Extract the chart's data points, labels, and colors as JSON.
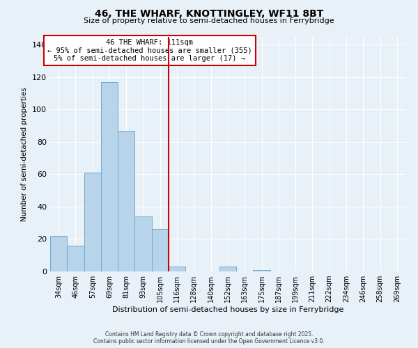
{
  "title": "46, THE WHARF, KNOTTINGLEY, WF11 8BT",
  "subtitle": "Size of property relative to semi-detached houses in Ferrybridge",
  "xlabel": "Distribution of semi-detached houses by size in Ferrybridge",
  "ylabel": "Number of semi-detached properties",
  "bar_labels": [
    "34sqm",
    "46sqm",
    "57sqm",
    "69sqm",
    "81sqm",
    "93sqm",
    "105sqm",
    "116sqm",
    "128sqm",
    "140sqm",
    "152sqm",
    "163sqm",
    "175sqm",
    "187sqm",
    "199sqm",
    "211sqm",
    "222sqm",
    "234sqm",
    "246sqm",
    "258sqm",
    "269sqm"
  ],
  "bar_values": [
    22,
    16,
    61,
    117,
    87,
    34,
    26,
    3,
    0,
    0,
    3,
    0,
    1,
    0,
    0,
    0,
    0,
    0,
    0,
    0,
    0
  ],
  "bar_color": "#b8d4ea",
  "bar_edge_color": "#6aaad4",
  "vline_color": "#cc0000",
  "vline_pos": 6.5,
  "annotation_title": "46 THE WHARF: 111sqm",
  "annotation_line1": "← 95% of semi-detached houses are smaller (355)",
  "annotation_line2": "5% of semi-detached houses are larger (17) →",
  "ylim": [
    0,
    145
  ],
  "yticks": [
    0,
    20,
    40,
    60,
    80,
    100,
    120,
    140
  ],
  "bg_color": "#e8f0f8",
  "grid_color": "#ffffff",
  "footer_line1": "Contains HM Land Registry data © Crown copyright and database right 2025.",
  "footer_line2": "Contains public sector information licensed under the Open Government Licence v3.0."
}
